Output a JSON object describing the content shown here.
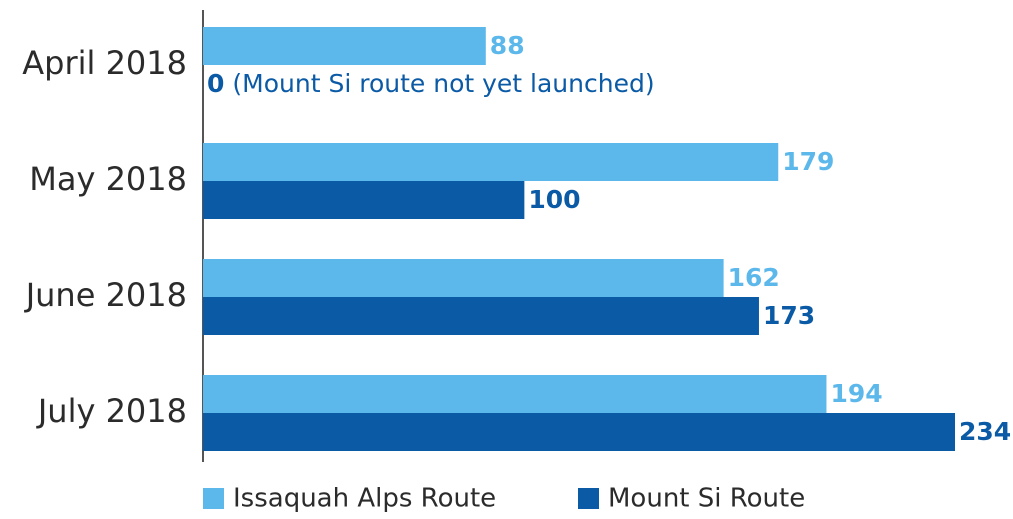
{
  "chart_data": {
    "type": "hbar",
    "categories": [
      "April 2018",
      "May 2018",
      "June 2018",
      "July 2018"
    ],
    "series": [
      {
        "name": "Issaquah Alps Route",
        "color": "#5cb8eb",
        "values": [
          88,
          179,
          162,
          194
        ]
      },
      {
        "name": "Mount Si Route",
        "color": "#0b5aa6",
        "values": [
          0,
          100,
          173,
          234
        ]
      }
    ],
    "annotation": "(Mount Si route not yet launched)",
    "legend": "bottom"
  }
}
